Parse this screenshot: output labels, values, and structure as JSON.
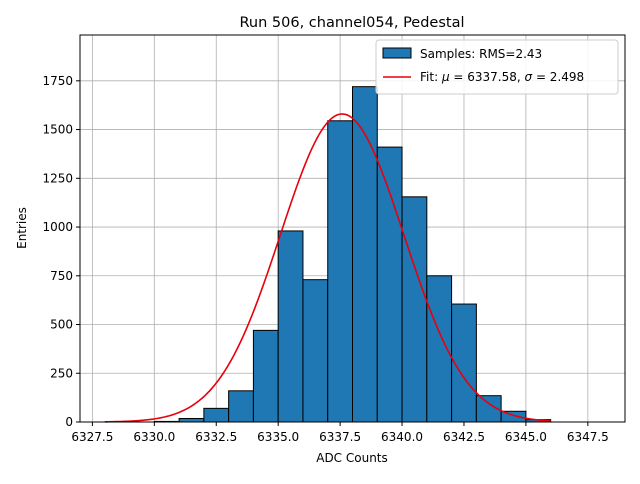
{
  "chart_data": {
    "type": "bar",
    "title": "Run 506, channel054, Pedestal",
    "xlabel": "ADC Counts",
    "ylabel": "Entries",
    "xlim": [
      6327.0,
      6349.0
    ],
    "ylim": [
      0,
      1985
    ],
    "grid": true,
    "legend_position": "upper-right",
    "bin_edges": [
      6330,
      6331,
      6332,
      6333,
      6334,
      6335,
      6336,
      6337,
      6338,
      6339,
      6340,
      6341,
      6342,
      6343,
      6344,
      6345,
      6346
    ],
    "counts": [
      3,
      18,
      70,
      160,
      470,
      980,
      730,
      1545,
      1720,
      1410,
      1155,
      750,
      605,
      135,
      55,
      12
    ],
    "x_ticks": [
      6327.5,
      6330.0,
      6332.5,
      6335.0,
      6337.5,
      6340.0,
      6342.5,
      6345.0,
      6347.5
    ],
    "x_tick_labels": [
      "6327.5",
      "6330.0",
      "6332.5",
      "6335.0",
      "6337.5",
      "6340.0",
      "6342.5",
      "6345.0",
      "6347.5"
    ],
    "y_ticks": [
      0,
      250,
      500,
      750,
      1000,
      1250,
      1500,
      1750
    ],
    "y_tick_labels": [
      "0",
      "250",
      "500",
      "750",
      "1000",
      "1250",
      "1500",
      "1750"
    ],
    "fit": {
      "mu": 6337.58,
      "sigma": 2.498,
      "amplitude": 1580,
      "x_range": [
        6328.0,
        6346.0
      ]
    },
    "series": [
      {
        "name": "Samples: RMS=2.43",
        "kind": "histogram",
        "color": "#1f77b4"
      },
      {
        "name": "Fit: μ = 6337.58, σ = 2.498",
        "kind": "line",
        "color": "#e8000b"
      }
    ],
    "legend": {
      "samples_label": "Samples: RMS=2.43",
      "fit_prefix": "Fit: ",
      "mu_symbol": "μ",
      "mu_value": " = 6337.58, ",
      "sigma_symbol": "σ",
      "sigma_value": " = 2.498"
    }
  }
}
